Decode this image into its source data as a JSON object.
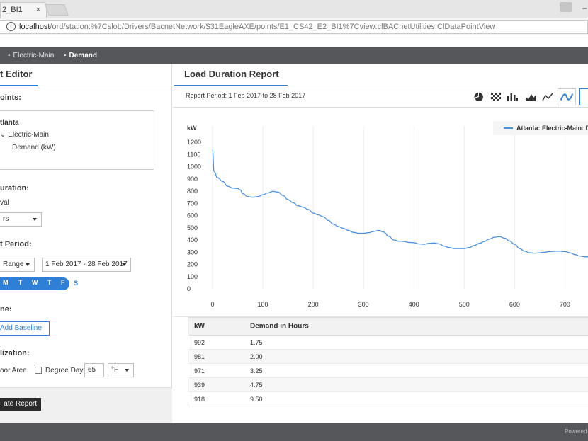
{
  "browser": {
    "tab_title": "2_BI1",
    "tab_close": "×",
    "minimize": "–",
    "url_host": "localhost",
    "url_path": "/ord/station:%7Cslot:/Drivers/BacnetNetwork/$31EagleAXE/points/E1_CS42_E2_BI1%7Cview:clBACnetUtilities:ClDataPointView"
  },
  "breadcrumb": [
    "Electric-Main",
    "Demand"
  ],
  "editor": {
    "tab_label": "t Editor",
    "points_label": "oints:",
    "tree": [
      "tlanta",
      "Electric-Main",
      "Demand (kW)"
    ],
    "duration_label": "uration:",
    "interval_label": "val",
    "interval_value": "rs",
    "period_label": "t Period:",
    "range_type": "Range",
    "range_value": "1 Feb 2017 - 28 Feb 2017",
    "days": [
      "M",
      "T",
      "W",
      "T",
      "F"
    ],
    "day_s": "S",
    "baseline_label": "ne:",
    "add_baseline": "Add Baseline",
    "normalization_label": "lization:",
    "floor_area": "oor Area",
    "degree_day": "Degree Day",
    "degree_value": "65",
    "unit_value": "°F",
    "generate": "ate Report"
  },
  "report": {
    "tab_label": "Load Duration Report",
    "period_text": "Report Period:  1 Feb 2017 to 28 Feb 2017",
    "chart_types": [
      "pie-icon",
      "heatmap-icon",
      "bar-chart-icon",
      "area-chart-icon",
      "line-chart-icon",
      "smooth-line-icon"
    ]
  },
  "chart_data": {
    "type": "line",
    "ylabel": "kW",
    "ylim": [
      0,
      1200
    ],
    "xlim": [
      0,
      750
    ],
    "y_ticks": [
      1200,
      1100,
      1000,
      900,
      800,
      700,
      600,
      500,
      400,
      300,
      200,
      100,
      0
    ],
    "x_ticks": [
      0,
      100,
      200,
      300,
      400,
      500,
      600,
      700
    ],
    "grid": "vertical",
    "legend_position": "top-right",
    "series": [
      {
        "name": "Atlanta: Electric-Main: D",
        "color": "#4a8fdc",
        "x": [
          0,
          3,
          10,
          20,
          30,
          40,
          50,
          55,
          60,
          70,
          80,
          90,
          100,
          110,
          120,
          130,
          140,
          150,
          160,
          170,
          180,
          190,
          200,
          210,
          220,
          230,
          240,
          250,
          260,
          270,
          280,
          290,
          300,
          310,
          320,
          330,
          340,
          350,
          360,
          370,
          380,
          390,
          400,
          410,
          420,
          430,
          440,
          450,
          460,
          470,
          480,
          490,
          500,
          510,
          520,
          530,
          540,
          550,
          560,
          570,
          580,
          590,
          600,
          610,
          620,
          630,
          640,
          650,
          660,
          670,
          680,
          690,
          700,
          710,
          720,
          730,
          740,
          750
        ],
        "y": [
          1140,
          960,
          910,
          880,
          840,
          825,
          822,
          810,
          780,
          755,
          750,
          755,
          770,
          785,
          798,
          792,
          765,
          730,
          705,
          680,
          668,
          650,
          620,
          605,
          590,
          560,
          530,
          510,
          495,
          478,
          462,
          455,
          455,
          460,
          470,
          478,
          465,
          430,
          400,
          390,
          388,
          380,
          378,
          368,
          365,
          372,
          375,
          368,
          350,
          338,
          330,
          330,
          330,
          338,
          355,
          372,
          388,
          408,
          422,
          428,
          415,
          392,
          365,
          330,
          308,
          295,
          292,
          295,
          300,
          305,
          308,
          308,
          305,
          295,
          280,
          268,
          262,
          262
        ]
      }
    ]
  },
  "table": {
    "headers": [
      "kW",
      "Demand in Hours"
    ],
    "rows": [
      [
        "992",
        "1.75"
      ],
      [
        "981",
        "2.00"
      ],
      [
        "971",
        "3.25"
      ],
      [
        "939",
        "4.75"
      ],
      [
        "918",
        "9.50"
      ]
    ]
  },
  "footer": {
    "powered": "Powered"
  }
}
